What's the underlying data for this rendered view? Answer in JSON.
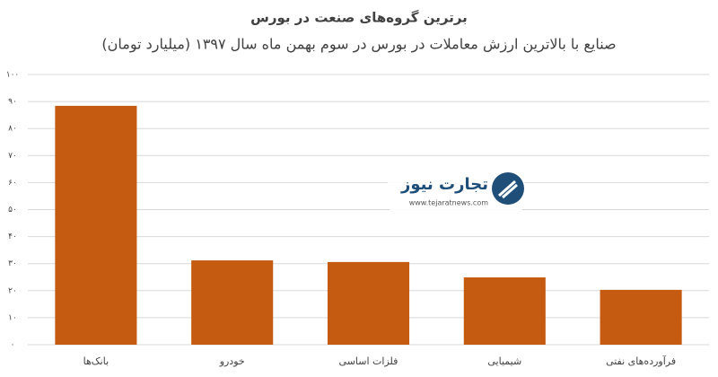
{
  "chart_data": {
    "type": "bar",
    "title": "برترین گروه‌های صنعت در بورس",
    "subtitle": "صنایع با بالاترین ارزش  معاملات در بورس در سوم بهمن ماه سال ۱۳۹۷ (میلیارد تومان)",
    "categories": [
      "بانک‌ها",
      "خودرو",
      "فلزات اساسی",
      "شیمیایی",
      "فرآورده‌های نفتی"
    ],
    "values": [
      88.4,
      31.2,
      30.6,
      24.9,
      20.3
    ],
    "color": "#c55a11",
    "ylim": [
      0,
      100
    ],
    "yticks": [
      {
        "value": 0,
        "label": "۰"
      },
      {
        "value": 10,
        "label": "۱۰"
      },
      {
        "value": 20,
        "label": "۲۰"
      },
      {
        "value": 30,
        "label": "۳۰"
      },
      {
        "value": 40,
        "label": "۴۰"
      },
      {
        "value": 50,
        "label": "۵۰"
      },
      {
        "value": 60,
        "label": "۶۰"
      },
      {
        "value": 70,
        "label": "۷۰"
      },
      {
        "value": 80,
        "label": "۸۰"
      },
      {
        "value": 90,
        "label": "۹۰"
      },
      {
        "value": 100,
        "label": "۱۰۰"
      }
    ],
    "grid": true,
    "logo_text": "تجارت نیوز",
    "logo_url": "www.tejaratnews.com"
  }
}
